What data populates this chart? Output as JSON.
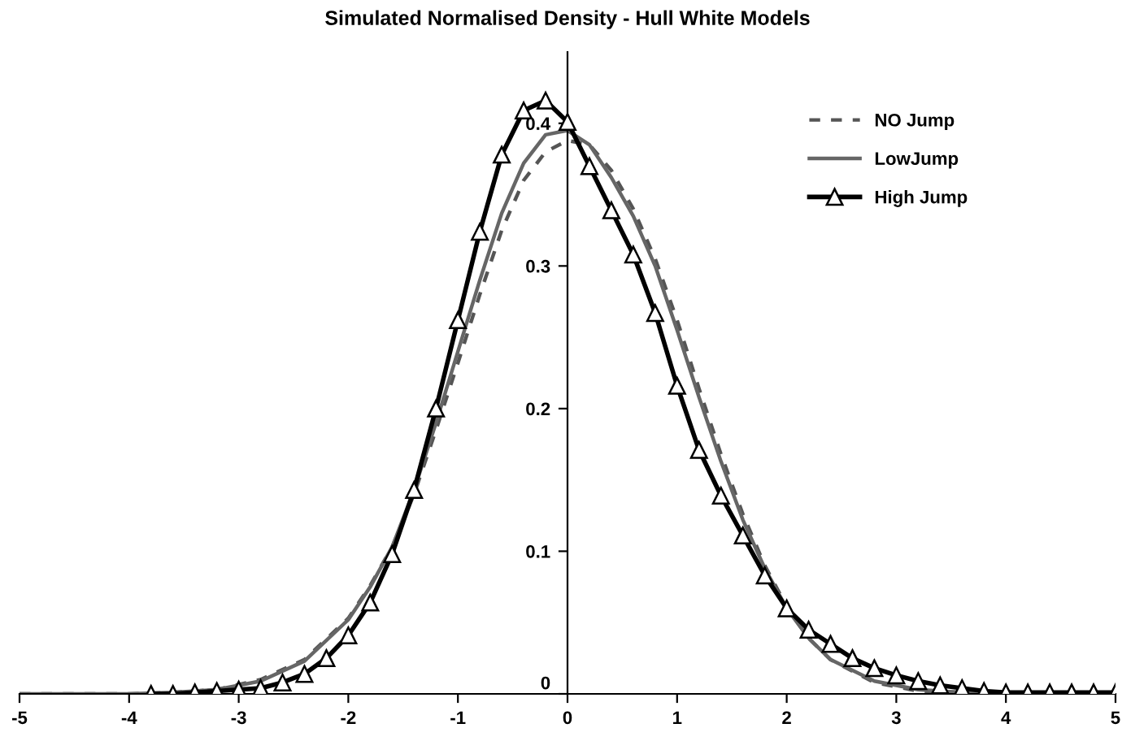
{
  "chart_data": {
    "type": "line",
    "title": "Simulated Normalised Density - Hull White Models",
    "xlim": [
      -5,
      5
    ],
    "xticks": [
      -5,
      -4,
      -3,
      -2,
      -1,
      0,
      1,
      2,
      3,
      4,
      5
    ],
    "ylim": [
      0,
      0.45
    ],
    "yticks": [
      0,
      0.1,
      0.2,
      0.3,
      0.4
    ],
    "grid": false,
    "legend": "top right",
    "series": [
      {
        "name": "NO Jump",
        "color": "#555555",
        "line_style": "dashed",
        "marker": "none",
        "x": [
          -5,
          -4.4,
          -4,
          -3.6,
          -3.2,
          -2.8,
          -2.4,
          -2.0,
          -1.8,
          -1.6,
          -1.4,
          -1.2,
          -1.0,
          -0.8,
          -0.6,
          -0.4,
          -0.2,
          0,
          0.2,
          0.4,
          0.6,
          0.8,
          1.0,
          1.2,
          1.4,
          1.6,
          1.8,
          2.0,
          2.2,
          2.4,
          2.8,
          3.2,
          3.6,
          4,
          5
        ],
        "values": [
          0,
          0,
          0,
          0.001,
          0.003,
          0.01,
          0.024,
          0.053,
          0.076,
          0.103,
          0.14,
          0.185,
          0.232,
          0.28,
          0.325,
          0.36,
          0.38,
          0.388,
          0.385,
          0.367,
          0.34,
          0.305,
          0.262,
          0.214,
          0.168,
          0.126,
          0.09,
          0.061,
          0.039,
          0.024,
          0.008,
          0.002,
          0.001,
          0,
          0
        ]
      },
      {
        "name": "LowJump",
        "color": "#666666",
        "line_style": "solid",
        "marker": "none",
        "x": [
          -5,
          -4.4,
          -4,
          -3.6,
          -3.2,
          -2.8,
          -2.4,
          -2.0,
          -1.8,
          -1.6,
          -1.4,
          -1.2,
          -1.0,
          -0.8,
          -0.6,
          -0.4,
          -0.2,
          0,
          0.2,
          0.4,
          0.6,
          0.8,
          1.0,
          1.2,
          1.4,
          1.6,
          1.8,
          2.0,
          2.2,
          2.4,
          2.8,
          3.2,
          3.6,
          4,
          5
        ],
        "values": [
          0,
          0,
          0,
          0.001,
          0.003,
          0.009,
          0.023,
          0.052,
          0.075,
          0.103,
          0.143,
          0.19,
          0.24,
          0.29,
          0.337,
          0.372,
          0.392,
          0.395,
          0.385,
          0.362,
          0.335,
          0.3,
          0.255,
          0.208,
          0.163,
          0.122,
          0.088,
          0.06,
          0.039,
          0.024,
          0.009,
          0.003,
          0.001,
          0,
          0
        ]
      },
      {
        "name": "High Jump",
        "color": "#000000",
        "line_style": "solid",
        "marker": "triangle",
        "x": [
          -3.8,
          -3.6,
          -3.4,
          -3.2,
          -3.0,
          -2.8,
          -2.6,
          -2.4,
          -2.2,
          -2.0,
          -1.8,
          -1.6,
          -1.4,
          -1.2,
          -1.0,
          -0.8,
          -0.6,
          -0.4,
          -0.2,
          0,
          0.2,
          0.4,
          0.6,
          0.8,
          1.0,
          1.2,
          1.4,
          1.6,
          1.8,
          2.0,
          2.2,
          2.4,
          2.6,
          2.8,
          3.0,
          3.2,
          3.4,
          3.6,
          3.8,
          4.0,
          4.2,
          4.4,
          4.6,
          4.8,
          5.0
        ],
        "values": [
          0,
          0,
          0.001,
          0.002,
          0.003,
          0.004,
          0.008,
          0.014,
          0.025,
          0.041,
          0.064,
          0.098,
          0.143,
          0.2,
          0.262,
          0.324,
          0.378,
          0.409,
          0.416,
          0.401,
          0.37,
          0.339,
          0.308,
          0.267,
          0.216,
          0.171,
          0.139,
          0.111,
          0.083,
          0.06,
          0.045,
          0.035,
          0.025,
          0.018,
          0.013,
          0.009,
          0.006,
          0.004,
          0.002,
          0.001,
          0.001,
          0.001,
          0.001,
          0.001,
          0.001
        ]
      }
    ]
  }
}
